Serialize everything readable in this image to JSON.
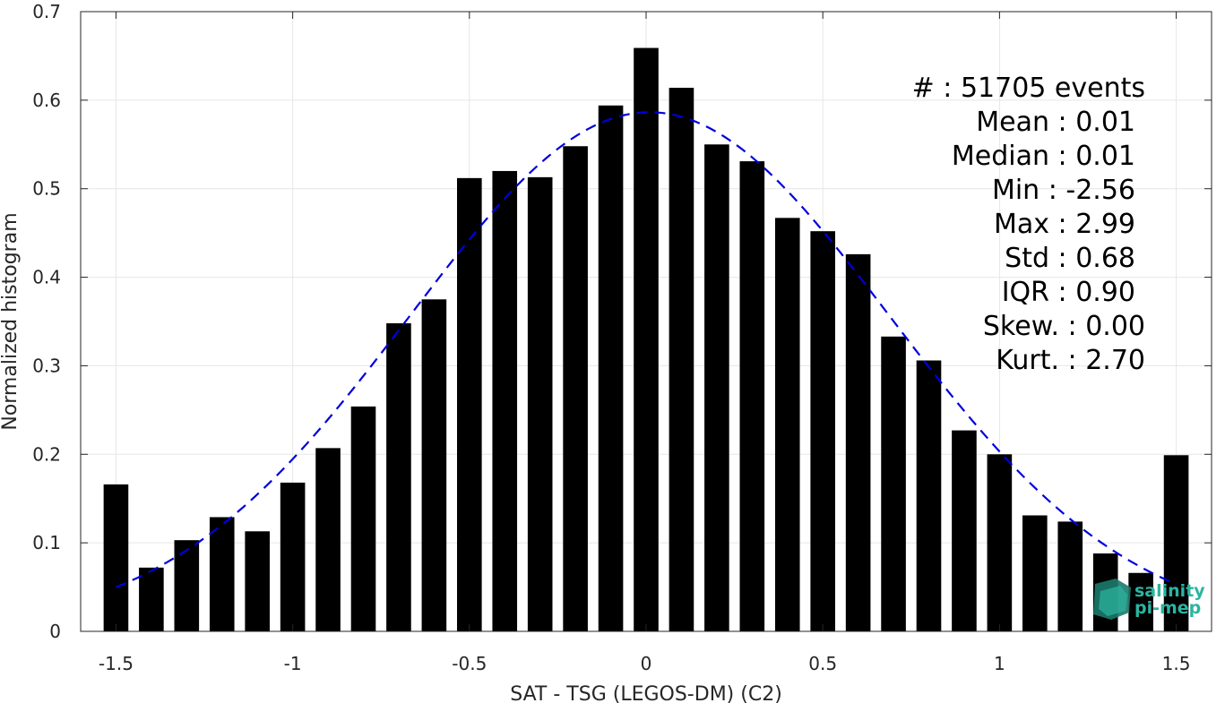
{
  "chart_data": {
    "type": "bar",
    "xlabel": "SAT - TSG (LEGOS-DM) (C2)",
    "ylabel": "Normalized histogram",
    "xlim": [
      -1.6,
      1.6
    ],
    "ylim": [
      0,
      0.7
    ],
    "xticks": [
      -1.5,
      -1,
      -0.5,
      0,
      0.5,
      1,
      1.5
    ],
    "xtick_labels": [
      "-1.5",
      "-1",
      "-0.5",
      "0",
      "0.5",
      "1",
      "1.5"
    ],
    "yticks": [
      0,
      0.1,
      0.2,
      0.3,
      0.4,
      0.5,
      0.6,
      0.7
    ],
    "ytick_labels": [
      "0",
      "0.1",
      "0.2",
      "0.3",
      "0.4",
      "0.5",
      "0.6",
      "0.7"
    ],
    "grid": true,
    "bin_width": 0.1,
    "bar_width": 0.07,
    "bar_color": "#000000",
    "x": [
      -1.5,
      -1.4,
      -1.3,
      -1.2,
      -1.1,
      -1.0,
      -0.9,
      -0.8,
      -0.7,
      -0.6,
      -0.5,
      -0.4,
      -0.3,
      -0.2,
      -0.1,
      0.0,
      0.1,
      0.2,
      0.3,
      0.4,
      0.5,
      0.6,
      0.7,
      0.8,
      0.9,
      1.0,
      1.1,
      1.2,
      1.3,
      1.4,
      1.5
    ],
    "values": [
      0.166,
      0.072,
      0.103,
      0.129,
      0.113,
      0.168,
      0.207,
      0.254,
      0.348,
      0.375,
      0.512,
      0.52,
      0.513,
      0.548,
      0.594,
      0.659,
      0.614,
      0.55,
      0.531,
      0.467,
      0.452,
      0.426,
      0.333,
      0.306,
      0.227,
      0.2,
      0.131,
      0.124,
      0.088,
      0.066,
      0.199
    ],
    "fit": {
      "type": "gaussian",
      "style": "dashed",
      "color": "#0000dd",
      "mean": 0.01,
      "std": 0.68,
      "x_range": [
        -1.5,
        1.5
      ]
    },
    "stats_text": [
      "#  : 51705 events",
      "Mean : 0.01",
      "Median : 0.01",
      "Min : -2.56",
      "Max : 2.99",
      "Std : 0.68",
      "IQR : 0.90",
      "Skew. : 0.00",
      "Kurt. : 2.70"
    ]
  },
  "logo": {
    "line1": "salinity",
    "line2": "pi-mep"
  }
}
